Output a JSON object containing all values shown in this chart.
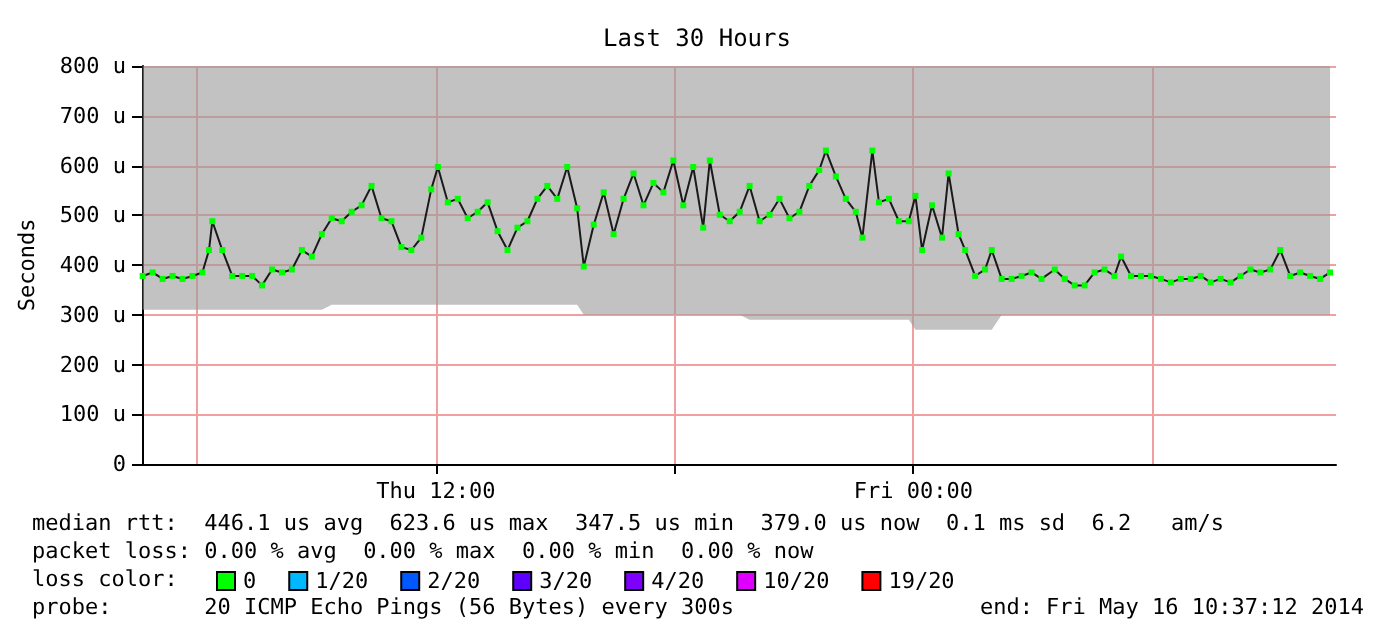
{
  "chart_data": {
    "type": "line",
    "title": "Last 30 Hours",
    "ylabel": "Seconds",
    "legend_title": "loss color:",
    "legend": "bottom",
    "grid": true,
    "marker": "square",
    "line_style": "solid",
    "xlim": [
      "2014-05-15T04:37",
      "2014-05-16T10:37"
    ],
    "xticks": [
      {
        "value": "2014-05-15T06:00",
        "label": null
      },
      {
        "value": "2014-05-15T12:00",
        "label": "Thu 12:00"
      },
      {
        "value": "2014-05-15T18:00",
        "label": null
      },
      {
        "value": "2014-05-16T00:00",
        "label": "Fri 00:00"
      },
      {
        "value": "2014-05-16T06:00",
        "label": null
      }
    ],
    "ylim": [
      0,
      800
    ],
    "yticks": [
      {
        "value": 0,
        "label": "0"
      },
      {
        "value": 100,
        "label": "100 u"
      },
      {
        "value": 200,
        "label": "200 u"
      },
      {
        "value": 300,
        "label": "300 u"
      },
      {
        "value": 400,
        "label": "400 u"
      },
      {
        "value": 500,
        "label": "500 u"
      },
      {
        "value": 600,
        "label": "600 u"
      },
      {
        "value": 700,
        "label": "700 u"
      },
      {
        "value": 800,
        "label": "800 u"
      }
    ],
    "x": [
      "2014-05-15T04:38",
      "2014-05-15T04:53",
      "2014-05-15T05:08",
      "2014-05-15T05:23",
      "2014-05-15T05:38",
      "2014-05-15T05:53",
      "2014-05-15T06:08",
      "2014-05-15T06:18",
      "2014-05-15T06:23",
      "2014-05-15T06:38",
      "2014-05-15T06:53",
      "2014-05-15T07:08",
      "2014-05-15T07:23",
      "2014-05-15T07:38",
      "2014-05-15T07:53",
      "2014-05-15T08:08",
      "2014-05-15T08:23",
      "2014-05-15T08:38",
      "2014-05-15T08:53",
      "2014-05-15T09:08",
      "2014-05-15T09:23",
      "2014-05-15T09:38",
      "2014-05-15T09:53",
      "2014-05-15T10:08",
      "2014-05-15T10:23",
      "2014-05-15T10:38",
      "2014-05-15T10:53",
      "2014-05-15T11:08",
      "2014-05-15T11:23",
      "2014-05-15T11:38",
      "2014-05-15T11:53",
      "2014-05-15T12:03",
      "2014-05-15T12:18",
      "2014-05-15T12:33",
      "2014-05-15T12:48",
      "2014-05-15T13:03",
      "2014-05-15T13:18",
      "2014-05-15T13:33",
      "2014-05-15T13:48",
      "2014-05-15T14:03",
      "2014-05-15T14:18",
      "2014-05-15T14:33",
      "2014-05-15T14:48",
      "2014-05-15T15:03",
      "2014-05-15T15:18",
      "2014-05-15T15:33",
      "2014-05-15T15:43",
      "2014-05-15T15:58",
      "2014-05-15T16:13",
      "2014-05-15T16:28",
      "2014-05-15T16:43",
      "2014-05-15T16:58",
      "2014-05-15T17:13",
      "2014-05-15T17:28",
      "2014-05-15T17:43",
      "2014-05-15T17:58",
      "2014-05-15T18:13",
      "2014-05-15T18:28",
      "2014-05-15T18:43",
      "2014-05-15T18:53",
      "2014-05-15T19:08",
      "2014-05-15T19:23",
      "2014-05-15T19:38",
      "2014-05-15T19:53",
      "2014-05-15T20:08",
      "2014-05-15T20:23",
      "2014-05-15T20:38",
      "2014-05-15T20:53",
      "2014-05-15T21:08",
      "2014-05-15T21:23",
      "2014-05-15T21:38",
      "2014-05-15T21:48",
      "2014-05-15T22:03",
      "2014-05-15T22:18",
      "2014-05-15T22:33",
      "2014-05-15T22:43",
      "2014-05-15T22:58",
      "2014-05-15T23:08",
      "2014-05-15T23:23",
      "2014-05-15T23:38",
      "2014-05-15T23:53",
      "2014-05-16T00:03",
      "2014-05-16T00:13",
      "2014-05-16T00:28",
      "2014-05-16T00:43",
      "2014-05-16T00:53",
      "2014-05-16T01:08",
      "2014-05-16T01:18",
      "2014-05-16T01:33",
      "2014-05-16T01:48",
      "2014-05-16T01:58",
      "2014-05-16T02:13",
      "2014-05-16T02:28",
      "2014-05-16T02:43",
      "2014-05-16T02:58",
      "2014-05-16T03:13",
      "2014-05-16T03:33",
      "2014-05-16T03:48",
      "2014-05-16T04:03",
      "2014-05-16T04:18",
      "2014-05-16T04:33",
      "2014-05-16T04:48",
      "2014-05-16T05:03",
      "2014-05-16T05:13",
      "2014-05-16T05:28",
      "2014-05-16T05:43",
      "2014-05-16T05:58",
      "2014-05-16T06:13",
      "2014-05-16T06:28",
      "2014-05-16T06:43",
      "2014-05-16T06:58",
      "2014-05-16T07:13",
      "2014-05-16T07:28",
      "2014-05-16T07:43",
      "2014-05-16T07:58",
      "2014-05-16T08:13",
      "2014-05-16T08:28",
      "2014-05-16T08:43",
      "2014-05-16T08:58",
      "2014-05-16T09:13",
      "2014-05-16T09:28",
      "2014-05-16T09:43",
      "2014-05-16T09:58",
      "2014-05-16T10:13",
      "2014-05-16T10:28"
    ],
    "series": [
      {
        "name": "0",
        "color": "#00ff00",
        "values": [
          378,
          385,
          372,
          378,
          372,
          378,
          385,
          430,
          488,
          430,
          378,
          378,
          378,
          359,
          391,
          385,
          391,
          430,
          417,
          462,
          494,
          488,
          507,
          520,
          559,
          494,
          488,
          436,
          430,
          455,
          552,
          597,
          526,
          533,
          494,
          507,
          526,
          468,
          430,
          475,
          488,
          533,
          559,
          533,
          597,
          514,
          397,
          481,
          546,
          462,
          533,
          584,
          520,
          565,
          546,
          610,
          520,
          597,
          475,
          610,
          501,
          488,
          507,
          559,
          488,
          501,
          533,
          494,
          507,
          559,
          591,
          630,
          578,
          533,
          507,
          455,
          630,
          526,
          533,
          488,
          488,
          539,
          430,
          520,
          455,
          584,
          462,
          430,
          378,
          391,
          430,
          372,
          372,
          378,
          385,
          372,
          391,
          372,
          359,
          359,
          385,
          391,
          378,
          417,
          378,
          378,
          378,
          372,
          365,
          372,
          372,
          378,
          365,
          372,
          365,
          378,
          391,
          385,
          391,
          430,
          378,
          385,
          378,
          372,
          385
        ],
        "lower": [
          310,
          310,
          310,
          310,
          310,
          310,
          310,
          310,
          310,
          310,
          310,
          310,
          310,
          310,
          310,
          310,
          310,
          310,
          310,
          310,
          320,
          320,
          320,
          320,
          320,
          320,
          320,
          320,
          320,
          320,
          320,
          320,
          320,
          320,
          320,
          320,
          320,
          320,
          320,
          320,
          320,
          320,
          320,
          320,
          320,
          320,
          300,
          300,
          300,
          300,
          300,
          300,
          300,
          300,
          300,
          300,
          300,
          300,
          300,
          300,
          300,
          300,
          300,
          290,
          290,
          290,
          290,
          290,
          290,
          290,
          290,
          290,
          290,
          290,
          290,
          290,
          290,
          290,
          290,
          290,
          290,
          270,
          270,
          270,
          270,
          270,
          270,
          270,
          270,
          270,
          270,
          300,
          300,
          300,
          300,
          300,
          300,
          300,
          300,
          300,
          300,
          300,
          300,
          300,
          300,
          300,
          300,
          300,
          300,
          300,
          300,
          300,
          300,
          300,
          300,
          300,
          300,
          300,
          300,
          300,
          300,
          300,
          300,
          300,
          300
        ],
        "upper": [
          800,
          800,
          800,
          800,
          800,
          800,
          800,
          800,
          800,
          800,
          800,
          800,
          800,
          800,
          800,
          800,
          800,
          800,
          800,
          800,
          800,
          800,
          800,
          800,
          800,
          800,
          800,
          800,
          800,
          800,
          800,
          800,
          800,
          800,
          800,
          800,
          800,
          800,
          800,
          800,
          800,
          800,
          800,
          800,
          800,
          800,
          800,
          800,
          800,
          800,
          800,
          800,
          800,
          800,
          800,
          800,
          800,
          800,
          800,
          800,
          800,
          800,
          800,
          800,
          800,
          800,
          800,
          800,
          800,
          800,
          800,
          800,
          800,
          800,
          800,
          800,
          800,
          800,
          800,
          800,
          800,
          800,
          800,
          800,
          800,
          800,
          800,
          800,
          800,
          800,
          800,
          800,
          800,
          800,
          800,
          800,
          800,
          800,
          800,
          800,
          800,
          800,
          800,
          800,
          800,
          800,
          800,
          800,
          800,
          800,
          800,
          800,
          800,
          800,
          800,
          800,
          800,
          800,
          800,
          800,
          800,
          800,
          800,
          800,
          800
        ]
      },
      {
        "name": "1/20",
        "color": "#00b8ff",
        "values": [
          null,
          null,
          null,
          null,
          null,
          null,
          null,
          null,
          null,
          null,
          null,
          null,
          null,
          null,
          null,
          null,
          null,
          null,
          null,
          null,
          null,
          null,
          null,
          null,
          null,
          null,
          null,
          null,
          null,
          null,
          null,
          null,
          null,
          null,
          null,
          null,
          null,
          null,
          null,
          null,
          null,
          null,
          null,
          null,
          null,
          null,
          null,
          null,
          null,
          null,
          null,
          null,
          null,
          null,
          null,
          null,
          null,
          null,
          null,
          null,
          null,
          null,
          null,
          null,
          null,
          null,
          null,
          null,
          null,
          null,
          null,
          null,
          null,
          null,
          null,
          null,
          null,
          null,
          null,
          null,
          null,
          null,
          null,
          null,
          null,
          null,
          null,
          null,
          null,
          null,
          null,
          null,
          null,
          null,
          null,
          null,
          null,
          null,
          null,
          null,
          null,
          null,
          null,
          null,
          null,
          null,
          null,
          null,
          null,
          null,
          null,
          null,
          null,
          null,
          null,
          null,
          null,
          null,
          null,
          null,
          null,
          null,
          null,
          null,
          null
        ]
      },
      {
        "name": "2/20",
        "color": "#0059ff",
        "values": [
          null,
          null,
          null,
          null,
          null,
          null,
          null,
          null,
          null,
          null,
          null,
          null,
          null,
          null,
          null,
          null,
          null,
          null,
          null,
          null,
          null,
          null,
          null,
          null,
          null,
          null,
          null,
          null,
          null,
          null,
          null,
          null,
          null,
          null,
          null,
          null,
          null,
          null,
          null,
          null,
          null,
          null,
          null,
          null,
          null,
          null,
          null,
          null,
          null,
          null,
          null,
          null,
          null,
          null,
          null,
          null,
          null,
          null,
          null,
          null,
          null,
          null,
          null,
          null,
          null,
          null,
          null,
          null,
          null,
          null,
          null,
          null,
          null,
          null,
          null,
          null,
          null,
          null,
          null,
          null,
          null,
          null,
          null,
          null,
          null,
          null,
          null,
          null,
          null,
          null,
          null,
          null,
          null,
          null,
          null,
          null,
          null,
          null,
          null,
          null,
          null,
          null,
          null,
          null,
          null,
          null,
          null,
          null,
          null,
          null,
          null,
          null,
          null,
          null,
          null,
          null,
          null,
          null,
          null,
          null,
          null,
          null,
          null,
          null,
          null
        ]
      },
      {
        "name": "3/20",
        "color": "#5e00ff",
        "values": [
          null,
          null,
          null,
          null,
          null,
          null,
          null,
          null,
          null,
          null,
          null,
          null,
          null,
          null,
          null,
          null,
          null,
          null,
          null,
          null,
          null,
          null,
          null,
          null,
          null,
          null,
          null,
          null,
          null,
          null,
          null,
          null,
          null,
          null,
          null,
          null,
          null,
          null,
          null,
          null,
          null,
          null,
          null,
          null,
          null,
          null,
          null,
          null,
          null,
          null,
          null,
          null,
          null,
          null,
          null,
          null,
          null,
          null,
          null,
          null,
          null,
          null,
          null,
          null,
          null,
          null,
          null,
          null,
          null,
          null,
          null,
          null,
          null,
          null,
          null,
          null,
          null,
          null,
          null,
          null,
          null,
          null,
          null,
          null,
          null,
          null,
          null,
          null,
          null,
          null,
          null,
          null,
          null,
          null,
          null,
          null,
          null,
          null,
          null,
          null,
          null,
          null,
          null,
          null,
          null,
          null,
          null,
          null,
          null,
          null,
          null,
          null,
          null,
          null,
          null,
          null,
          null,
          null,
          null,
          null,
          null,
          null,
          null,
          null,
          null
        ]
      },
      {
        "name": "4/20",
        "color": "#7e00ff",
        "values": [
          null,
          null,
          null,
          null,
          null,
          null,
          null,
          null,
          null,
          null,
          null,
          null,
          null,
          null,
          null,
          null,
          null,
          null,
          null,
          null,
          null,
          null,
          null,
          null,
          null,
          null,
          null,
          null,
          null,
          null,
          null,
          null,
          null,
          null,
          null,
          null,
          null,
          null,
          null,
          null,
          null,
          null,
          null,
          null,
          null,
          null,
          null,
          null,
          null,
          null,
          null,
          null,
          null,
          null,
          null,
          null,
          null,
          null,
          null,
          null,
          null,
          null,
          null,
          null,
          null,
          null,
          null,
          null,
          null,
          null,
          null,
          null,
          null,
          null,
          null,
          null,
          null,
          null,
          null,
          null,
          null,
          null,
          null,
          null,
          null,
          null,
          null,
          null,
          null,
          null,
          null,
          null,
          null,
          null,
          null,
          null,
          null,
          null,
          null,
          null,
          null,
          null,
          null,
          null,
          null,
          null,
          null,
          null,
          null,
          null,
          null,
          null,
          null,
          null,
          null,
          null,
          null,
          null,
          null,
          null,
          null,
          null,
          null,
          null,
          null
        ]
      },
      {
        "name": "10/20",
        "color": "#dd00ff",
        "values": [
          null,
          null,
          null,
          null,
          null,
          null,
          null,
          null,
          null,
          null,
          null,
          null,
          null,
          null,
          null,
          null,
          null,
          null,
          null,
          null,
          null,
          null,
          null,
          null,
          null,
          null,
          null,
          null,
          null,
          null,
          null,
          null,
          null,
          null,
          null,
          null,
          null,
          null,
          null,
          null,
          null,
          null,
          null,
          null,
          null,
          null,
          null,
          null,
          null,
          null,
          null,
          null,
          null,
          null,
          null,
          null,
          null,
          null,
          null,
          null,
          null,
          null,
          null,
          null,
          null,
          null,
          null,
          null,
          null,
          null,
          null,
          null,
          null,
          null,
          null,
          null,
          null,
          null,
          null,
          null,
          null,
          null,
          null,
          null,
          null,
          null,
          null,
          null,
          null,
          null,
          null,
          null,
          null,
          null,
          null,
          null,
          null,
          null,
          null,
          null,
          null,
          null,
          null,
          null,
          null,
          null,
          null,
          null,
          null,
          null,
          null,
          null,
          null,
          null,
          null,
          null,
          null,
          null,
          null,
          null,
          null,
          null,
          null,
          null,
          null
        ]
      },
      {
        "name": "19/20",
        "color": "#ff0000",
        "values": [
          null,
          null,
          null,
          null,
          null,
          null,
          null,
          null,
          null,
          null,
          null,
          null,
          null,
          null,
          null,
          null,
          null,
          null,
          null,
          null,
          null,
          null,
          null,
          null,
          null,
          null,
          null,
          null,
          null,
          null,
          null,
          null,
          null,
          null,
          null,
          null,
          null,
          null,
          null,
          null,
          null,
          null,
          null,
          null,
          null,
          null,
          null,
          null,
          null,
          null,
          null,
          null,
          null,
          null,
          null,
          null,
          null,
          null,
          null,
          null,
          null,
          null,
          null,
          null,
          null,
          null,
          null,
          null,
          null,
          null,
          null,
          null,
          null,
          null,
          null,
          null,
          null,
          null,
          null,
          null,
          null,
          null,
          null,
          null,
          null,
          null,
          null,
          null,
          null,
          null,
          null,
          null,
          null,
          null,
          null,
          null,
          null,
          null,
          null,
          null,
          null,
          null,
          null,
          null,
          null,
          null,
          null,
          null,
          null,
          null,
          null,
          null,
          null,
          null,
          null,
          null,
          null,
          null,
          null,
          null,
          null,
          null,
          null,
          null,
          null
        ]
      }
    ],
    "annotations": [
      "median rtt:  446.1 us avg  623.6 us max  347.5 us min  379.0 us now  0.1 ms sd  6.2   am/s",
      "packet loss: 0.00 % avg  0.00 % max  0.00 % min  0.00 % now",
      "probe:       20 ICMP Echo Pings (56 Bytes) every 300s",
      "end: Fri May 16 10:37:12 2014"
    ]
  }
}
